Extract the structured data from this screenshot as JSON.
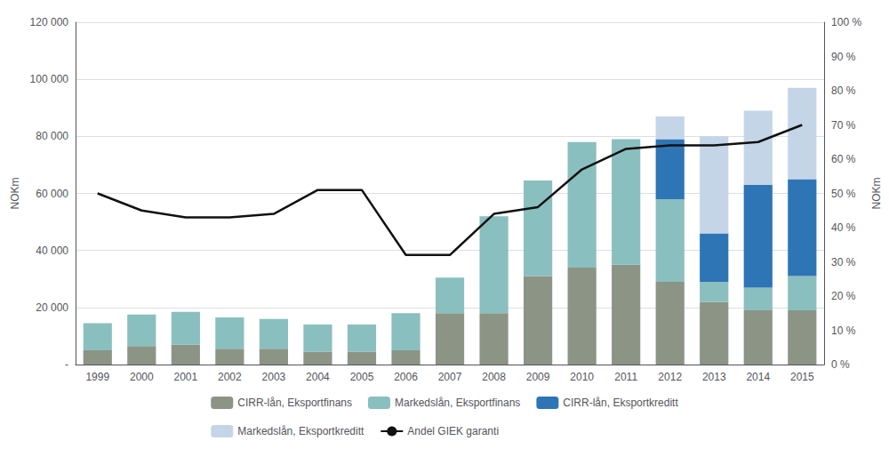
{
  "chart_data": {
    "type": "bar",
    "categories": [
      "1999",
      "2000",
      "2001",
      "2002",
      "2003",
      "2004",
      "2005",
      "2006",
      "2007",
      "2008",
      "2009",
      "2010",
      "2011",
      "2012",
      "2013",
      "2014",
      "2015"
    ],
    "stacked": true,
    "series": [
      {
        "name": "CIRR-lån, Eksportfinans",
        "type": "bar",
        "color": "#8c9485",
        "values": [
          5000,
          6500,
          7000,
          5500,
          5500,
          4500,
          4500,
          5000,
          18000,
          18000,
          31000,
          34000,
          35000,
          29000,
          22000,
          19000,
          19000
        ]
      },
      {
        "name": "Markedslån, Eksportfinans",
        "type": "bar",
        "color": "#8abfbf",
        "values": [
          9500,
          11000,
          11500,
          11000,
          10500,
          9500,
          9500,
          13000,
          12500,
          34000,
          33500,
          44000,
          44000,
          29000,
          7000,
          8000,
          12000
        ]
      },
      {
        "name": "CIRR-lån, Eksportkreditt",
        "type": "bar",
        "color": "#2e75b6",
        "values": [
          0,
          0,
          0,
          0,
          0,
          0,
          0,
          0,
          0,
          0,
          0,
          0,
          0,
          21000,
          17000,
          36000,
          34000
        ]
      },
      {
        "name": "Markedslån, Eksportkreditt",
        "type": "bar",
        "color": "#c5d5e8",
        "values": [
          0,
          0,
          0,
          0,
          0,
          0,
          0,
          0,
          0,
          0,
          0,
          0,
          0,
          8000,
          34000,
          26000,
          32000
        ]
      },
      {
        "name": "Andel GIEK garanti",
        "type": "line",
        "axis": "y2",
        "color": "#111111",
        "values": [
          50,
          45,
          43,
          43,
          44,
          51,
          51,
          32,
          32,
          44,
          46,
          57,
          63,
          64,
          64,
          65,
          70
        ]
      }
    ],
    "ylabel": "NOKm",
    "y2label": "NOKm",
    "ylim": [
      0,
      120000
    ],
    "yticks": [
      {
        "value": 0,
        "label": "-"
      },
      {
        "value": 20000,
        "label": "20 000"
      },
      {
        "value": 40000,
        "label": "40 000"
      },
      {
        "value": 60000,
        "label": "60 000"
      },
      {
        "value": 80000,
        "label": "80 000"
      },
      {
        "value": 100000,
        "label": "100 000"
      },
      {
        "value": 120000,
        "label": "120 000"
      }
    ],
    "y2lim": [
      0,
      100
    ],
    "y2ticks": [
      {
        "value": 0,
        "label": "0 %"
      },
      {
        "value": 10,
        "label": "10 %"
      },
      {
        "value": 20,
        "label": "20 %"
      },
      {
        "value": 30,
        "label": "30 %"
      },
      {
        "value": 40,
        "label": "40 %"
      },
      {
        "value": 50,
        "label": "50 %"
      },
      {
        "value": 60,
        "label": "60 %"
      },
      {
        "value": 70,
        "label": "70 %"
      },
      {
        "value": 80,
        "label": "80 %"
      },
      {
        "value": 90,
        "label": "90 %"
      },
      {
        "value": 100,
        "label": "100 %"
      }
    ],
    "grid": true,
    "legend": "bottom"
  }
}
